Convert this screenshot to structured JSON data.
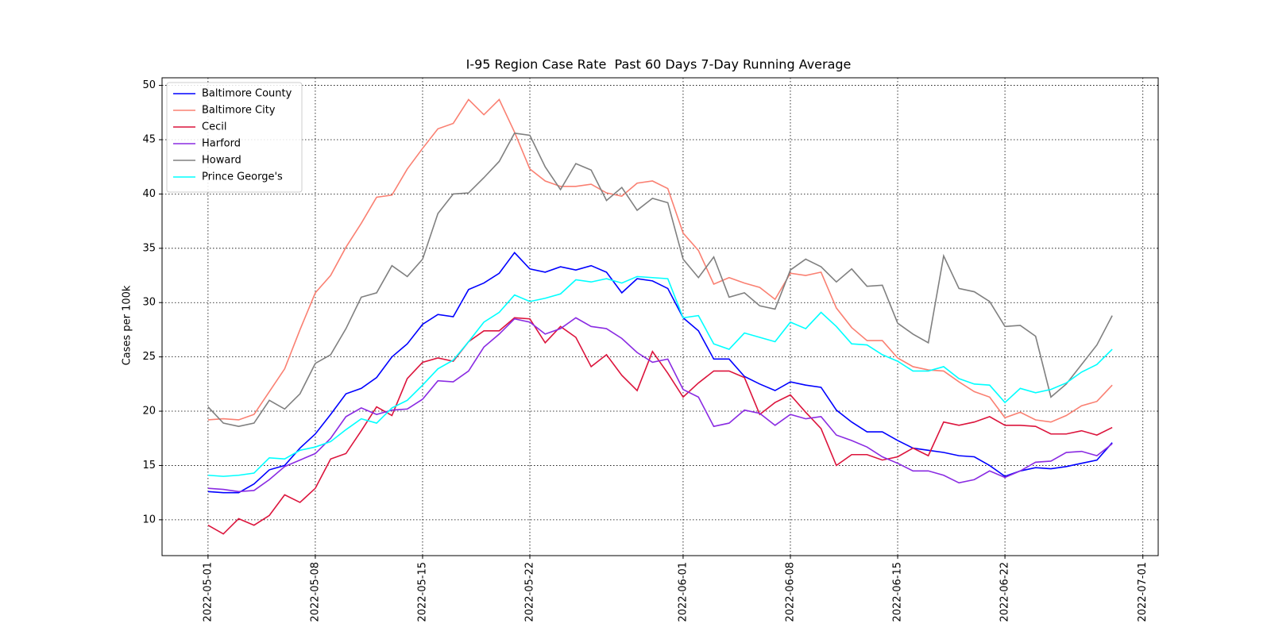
{
  "chart_data": {
    "type": "line",
    "title": "I-95 Region Case Rate  Past 60 Days 7-Day Running Average",
    "y_label": "Cases per 100k",
    "x": [
      "2022-05-01",
      "2022-05-02",
      "2022-05-03",
      "2022-05-04",
      "2022-05-05",
      "2022-05-06",
      "2022-05-07",
      "2022-05-08",
      "2022-05-09",
      "2022-05-10",
      "2022-05-11",
      "2022-05-12",
      "2022-05-13",
      "2022-05-14",
      "2022-05-15",
      "2022-05-16",
      "2022-05-17",
      "2022-05-18",
      "2022-05-19",
      "2022-05-20",
      "2022-05-21",
      "2022-05-22",
      "2022-05-23",
      "2022-05-24",
      "2022-05-25",
      "2022-05-26",
      "2022-05-27",
      "2022-05-28",
      "2022-05-29",
      "2022-05-30",
      "2022-05-31",
      "2022-06-01",
      "2022-06-02",
      "2022-06-03",
      "2022-06-04",
      "2022-06-05",
      "2022-06-06",
      "2022-06-07",
      "2022-06-08",
      "2022-06-09",
      "2022-06-10",
      "2022-06-11",
      "2022-06-12",
      "2022-06-13",
      "2022-06-14",
      "2022-06-15",
      "2022-06-16",
      "2022-06-17",
      "2022-06-18",
      "2022-06-19",
      "2022-06-20",
      "2022-06-21",
      "2022-06-22",
      "2022-06-23",
      "2022-06-24",
      "2022-06-25",
      "2022-06-26",
      "2022-06-27",
      "2022-06-28",
      "2022-06-29"
    ],
    "series": [
      {
        "name": "Baltimore County",
        "color": "#0000ff",
        "values": [
          12.6,
          12.5,
          12.5,
          13.3,
          14.6,
          15.0,
          16.6,
          17.9,
          19.7,
          21.6,
          22.1,
          23.1,
          25.0,
          26.2,
          28.0,
          28.9,
          28.7,
          31.2,
          31.8,
          32.7,
          34.6,
          33.1,
          32.8,
          33.3,
          33.0,
          33.4,
          32.8,
          30.9,
          32.2,
          32.0,
          31.3,
          28.6,
          27.4,
          24.8,
          24.8,
          23.2,
          22.5,
          21.9,
          22.7,
          22.4,
          22.2,
          20.1,
          19.0,
          18.1,
          18.1,
          17.3,
          16.6,
          16.4,
          16.2,
          15.9,
          15.8,
          15.0,
          14.0,
          14.5,
          14.8,
          14.7,
          14.9,
          15.2,
          15.5,
          17.1
        ]
      },
      {
        "name": "Baltimore City",
        "color": "#fa8072",
        "values": [
          19.2,
          19.3,
          19.2,
          19.7,
          21.8,
          23.9,
          27.5,
          30.9,
          32.5,
          35.1,
          37.3,
          39.7,
          39.9,
          42.3,
          44.2,
          46.0,
          46.5,
          48.7,
          47.3,
          48.7,
          45.7,
          42.3,
          41.2,
          40.7,
          40.7,
          40.9,
          40.1,
          39.8,
          41.0,
          41.2,
          40.5,
          36.4,
          34.8,
          31.7,
          32.3,
          31.8,
          31.4,
          30.3,
          32.7,
          32.5,
          32.8,
          29.5,
          27.7,
          26.5,
          26.5,
          24.9,
          24.1,
          23.8,
          23.7,
          22.7,
          21.8,
          21.3,
          19.4,
          19.9,
          19.2,
          19.0,
          19.6,
          20.5,
          20.9,
          22.4
        ]
      },
      {
        "name": "Cecil",
        "color": "#dc143c",
        "values": [
          9.5,
          8.7,
          10.1,
          9.5,
          10.4,
          12.3,
          11.6,
          12.9,
          15.6,
          16.1,
          18.2,
          20.4,
          19.6,
          23.0,
          24.5,
          24.9,
          24.6,
          26.4,
          27.4,
          27.4,
          28.6,
          28.5,
          26.3,
          27.8,
          26.8,
          24.1,
          25.2,
          23.3,
          21.9,
          25.5,
          23.5,
          21.3,
          22.6,
          23.7,
          23.7,
          23.1,
          19.7,
          20.8,
          21.5,
          19.9,
          18.4,
          15.0,
          16.0,
          16.0,
          15.5,
          15.8,
          16.6,
          15.9,
          19.0,
          18.7,
          19.0,
          19.5,
          18.7,
          18.7,
          18.6,
          17.9,
          17.9,
          18.2,
          17.8,
          18.5
        ]
      },
      {
        "name": "Harford",
        "color": "#8a2be2",
        "values": [
          12.9,
          12.8,
          12.6,
          12.7,
          13.7,
          14.9,
          15.5,
          16.1,
          17.5,
          19.5,
          20.3,
          19.7,
          20.1,
          20.2,
          21.1,
          22.8,
          22.7,
          23.7,
          25.9,
          27.1,
          28.5,
          28.2,
          27.1,
          27.6,
          28.6,
          27.8,
          27.6,
          26.7,
          25.4,
          24.5,
          24.8,
          22.0,
          21.3,
          18.6,
          18.9,
          20.1,
          19.8,
          18.7,
          19.7,
          19.3,
          19.5,
          17.8,
          17.3,
          16.7,
          15.8,
          15.2,
          14.5,
          14.5,
          14.1,
          13.4,
          13.7,
          14.5,
          13.9,
          14.5,
          15.3,
          15.4,
          16.2,
          16.3,
          15.9,
          17.0
        ]
      },
      {
        "name": "Howard",
        "color": "#808080",
        "values": [
          20.4,
          18.9,
          18.6,
          18.9,
          21.0,
          20.2,
          21.6,
          24.4,
          25.2,
          27.6,
          30.5,
          30.9,
          33.4,
          32.4,
          34.0,
          38.2,
          40.0,
          40.1,
          41.5,
          43.0,
          45.6,
          45.4,
          42.5,
          40.4,
          42.8,
          42.2,
          39.4,
          40.6,
          38.5,
          39.6,
          39.2,
          34.0,
          32.3,
          34.2,
          30.5,
          30.9,
          29.7,
          29.4,
          33.0,
          34.0,
          33.3,
          31.9,
          33.1,
          31.5,
          31.6,
          28.1,
          27.1,
          26.3,
          34.3,
          31.3,
          31.0,
          30.1,
          27.8,
          27.9,
          26.9,
          21.3,
          22.5,
          24.3,
          26.1,
          28.8
        ]
      },
      {
        "name": "Prince George's",
        "color": "#00ffff",
        "values": [
          14.1,
          14.0,
          14.1,
          14.3,
          15.7,
          15.6,
          16.4,
          16.7,
          17.2,
          18.3,
          19.3,
          18.9,
          20.3,
          21.0,
          22.4,
          23.9,
          24.7,
          26.4,
          28.2,
          29.1,
          30.7,
          30.1,
          30.4,
          30.8,
          32.1,
          31.9,
          32.2,
          31.8,
          32.4,
          32.3,
          32.2,
          28.6,
          28.8,
          26.2,
          25.7,
          27.2,
          26.8,
          26.4,
          28.2,
          27.6,
          29.1,
          27.8,
          26.2,
          26.1,
          25.2,
          24.6,
          23.7,
          23.7,
          24.1,
          23.0,
          22.5,
          22.4,
          20.8,
          22.1,
          21.7,
          22.0,
          22.6,
          23.6,
          24.3,
          25.7
        ]
      }
    ],
    "xlim": [
      "2022-04-28",
      "2022-07-02"
    ],
    "xticks": [
      "2022-05-01",
      "2022-05-08",
      "2022-05-15",
      "2022-05-22",
      "2022-06-01",
      "2022-06-08",
      "2022-06-15",
      "2022-06-22",
      "2022-07-01"
    ],
    "ylim": [
      6.7,
      50.7
    ],
    "yticks": [
      10,
      15,
      20,
      25,
      30,
      35,
      40,
      45,
      50
    ],
    "grid": true,
    "legend": "upper-left"
  }
}
